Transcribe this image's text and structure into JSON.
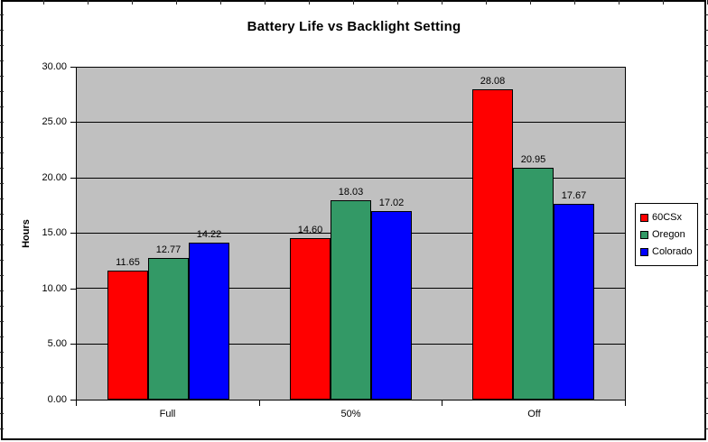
{
  "chart_data": {
    "type": "bar",
    "title": "Battery Life vs Backlight Setting",
    "categories": [
      "Full",
      "50%",
      "Off"
    ],
    "series": [
      {
        "name": "60CSx",
        "color": "#ff0000",
        "values": [
          11.65,
          14.6,
          28.08
        ]
      },
      {
        "name": "Oregon",
        "color": "#339966",
        "values": [
          12.77,
          18.03,
          20.95
        ]
      },
      {
        "name": "Colorado",
        "color": "#0000ff",
        "values": [
          14.22,
          17.02,
          17.67
        ]
      }
    ],
    "data_labels": [
      [
        "11.65",
        "14.60",
        "28.08"
      ],
      [
        "12.77",
        "18.03",
        "20.95"
      ],
      [
        "14.22",
        "17.02",
        "17.67"
      ]
    ],
    "xlabel": "",
    "ylabel": "Hours",
    "ylim": [
      0,
      30
    ],
    "ytick_step": 5,
    "ytick_labels": [
      "0.00",
      "5.00",
      "10.00",
      "15.00",
      "20.00",
      "25.00",
      "30.00"
    ],
    "grid": true,
    "gridline_color": "#000000",
    "plot_background": "#c0c0c0",
    "legend_position": "right",
    "legend_entries": [
      "60CSx",
      "Oregon",
      "Colorado"
    ]
  }
}
